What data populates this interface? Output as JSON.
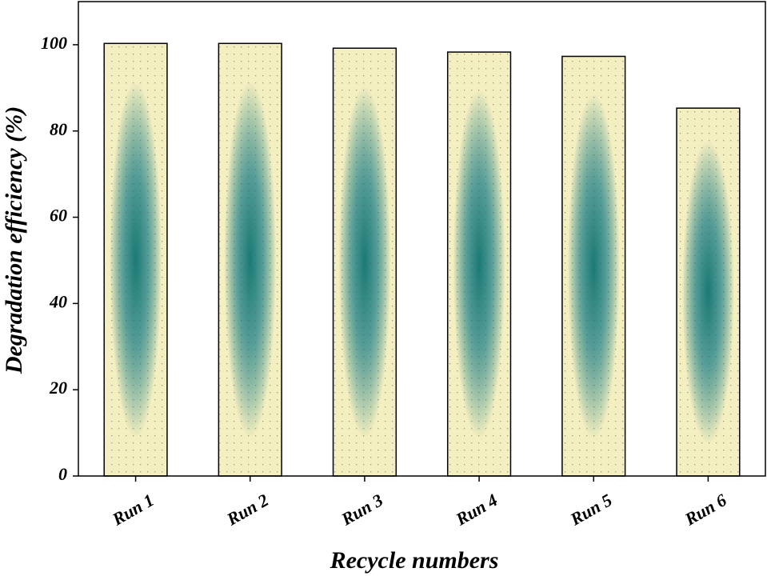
{
  "chart_data": {
    "type": "bar",
    "x_label": "Recycle numbers",
    "y_label": "Degradation efficiency (%)",
    "categories": [
      "Run 1",
      "Run 2",
      "Run 3",
      "Run 4",
      "Run 5",
      "Run 6"
    ],
    "values": [
      100.3,
      100.3,
      99.2,
      98.3,
      97.3,
      85.3
    ],
    "color": "#1a7a74",
    "base_color": "#f4efc0",
    "ylim": [
      0,
      110
    ],
    "yticks": [
      0,
      20,
      40,
      60,
      80,
      100
    ]
  }
}
